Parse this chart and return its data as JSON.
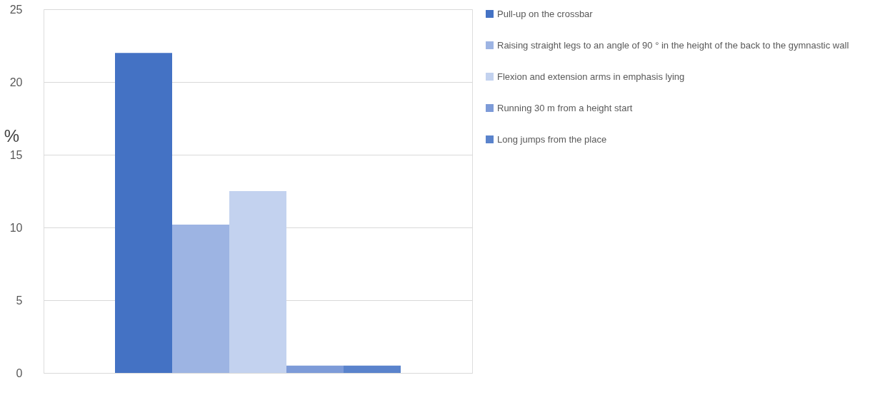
{
  "chart_data": {
    "type": "bar",
    "ylabel": "%",
    "categories": [
      null
    ],
    "series": [
      {
        "name": "Pull-up on the crossbar",
        "color": "#4472c4",
        "values": [
          22
        ]
      },
      {
        "name": "Raising straight legs to an angle of 90 ° in the height of the back to the gymnastic wall",
        "color": "#9db4e3",
        "values": [
          10.2
        ]
      },
      {
        "name": "Flexion and extension arms in emphasis lying",
        "color": "#c3d2ef",
        "values": [
          12.5
        ]
      },
      {
        "name": "Running 30 m from a height start",
        "color": "#7d9bd8",
        "values": [
          0.5
        ]
      },
      {
        "name": "Long jumps from the place",
        "color": "#5a83cc",
        "values": [
          0.5
        ]
      }
    ],
    "ylim": [
      0,
      25
    ],
    "yticks": [
      0,
      5,
      10,
      15,
      20,
      25
    ],
    "grid": "y",
    "legend": "right"
  }
}
